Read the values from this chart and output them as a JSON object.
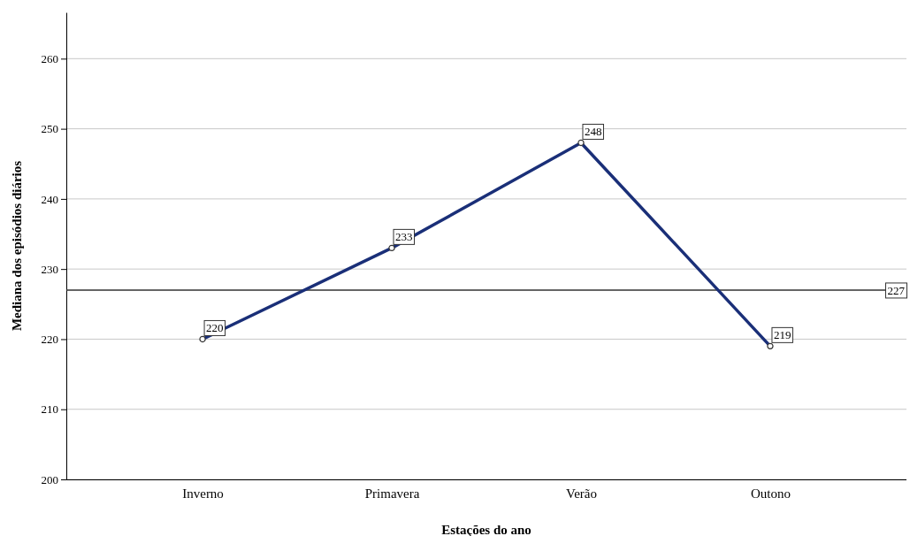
{
  "chart_data": {
    "type": "line",
    "xlabel": "Estações do ano",
    "ylabel": "Mediana dos episódios diários",
    "categories": [
      "Inverno",
      "Primavera",
      "Verão",
      "Outono"
    ],
    "series": [
      {
        "color": "#1a2f78",
        "values": [
          220,
          233,
          248,
          219
        ]
      }
    ],
    "ylim": [
      200,
      266.6
    ],
    "yticks": [
      200,
      210,
      220,
      230,
      240,
      250,
      260
    ],
    "grid": "y",
    "marker": "circle",
    "line_style": "solid",
    "data_labels": true,
    "ref_lines": [
      {
        "axis": "y",
        "value": 227,
        "label": "227",
        "color": "#333333"
      }
    ]
  }
}
